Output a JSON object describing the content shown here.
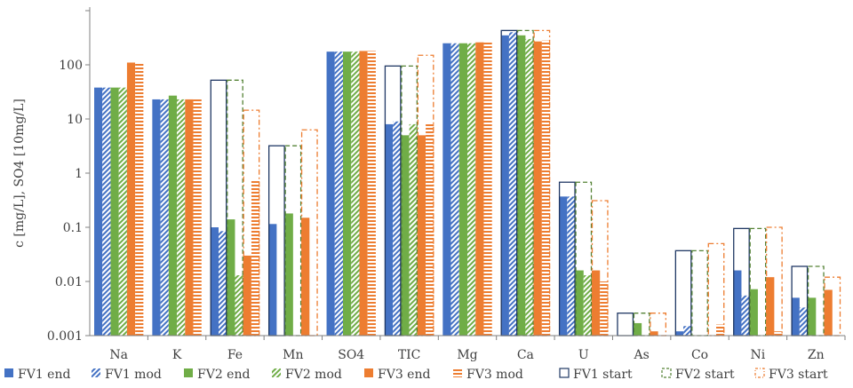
{
  "chart_data": {
    "type": "bar",
    "ylabel": "c [mg/L], SO4 [10mg/L]",
    "yscale": "log",
    "ylim": [
      0.001,
      1000
    ],
    "y_tick_labels": [
      "0.001",
      "0.01",
      "0.1",
      "1",
      "10",
      "100"
    ],
    "categories": [
      "Na",
      "K",
      "Fe",
      "Mn",
      "SO4",
      "TIC",
      "Mg",
      "Ca",
      "U",
      "As",
      "Co",
      "Ni",
      "Zn"
    ],
    "series": [
      {
        "name": "FV1 end",
        "style": "solid",
        "color": "#4472C4",
        "values": [
          38,
          23,
          0.1,
          0.115,
          175,
          8,
          250,
          350,
          0.37,
          null,
          0.0012,
          0.016,
          0.005
        ]
      },
      {
        "name": "FV1 mod",
        "style": "diagonal-hatch",
        "color": "#4472C4",
        "values": [
          38,
          23,
          0.085,
          null,
          175,
          9,
          250,
          400,
          0.37,
          null,
          0.0015,
          0.0055,
          0.0033
        ]
      },
      {
        "name": "FV2 end",
        "style": "solid",
        "color": "#70AD47",
        "values": [
          38,
          27,
          0.14,
          0.18,
          175,
          5,
          250,
          350,
          0.016,
          0.0017,
          null,
          0.0072,
          0.005
        ]
      },
      {
        "name": "FV2 mod",
        "style": "diagonal-hatch",
        "color": "#70AD47",
        "values": [
          38,
          23,
          0.013,
          null,
          175,
          8,
          250,
          300,
          0.013,
          null,
          null,
          null,
          null
        ]
      },
      {
        "name": "FV3 end",
        "style": "solid",
        "color": "#ED7D31",
        "values": [
          110,
          23,
          0.03,
          0.15,
          180,
          5,
          260,
          270,
          0.016,
          0.0012,
          null,
          0.012,
          0.007
        ]
      },
      {
        "name": "FV3 mod",
        "style": "horizontal-hatch",
        "color": "#ED7D31",
        "values": [
          110,
          23,
          0.75,
          null,
          180,
          8,
          260,
          280,
          0.01,
          null,
          0.0016,
          0.0012,
          null
        ]
      },
      {
        "name": "FV1 start",
        "style": "outline-solid",
        "color": "#203864",
        "values": [
          null,
          null,
          52,
          3.2,
          null,
          95,
          null,
          430,
          0.68,
          0.0026,
          0.037,
          0.095,
          0.019
        ]
      },
      {
        "name": "FV2 start",
        "style": "outline-dashed",
        "color": "#548235",
        "values": [
          null,
          null,
          52,
          3.2,
          null,
          95,
          null,
          430,
          0.68,
          0.0026,
          0.037,
          0.095,
          0.019
        ]
      },
      {
        "name": "FV3 start",
        "style": "outline-dashdot",
        "color": "#ED7D31",
        "values": [
          null,
          null,
          14.5,
          6.3,
          null,
          150,
          null,
          430,
          0.31,
          0.0026,
          0.05,
          0.1,
          0.012
        ]
      }
    ],
    "grid": false,
    "legend_position": "bottom"
  }
}
